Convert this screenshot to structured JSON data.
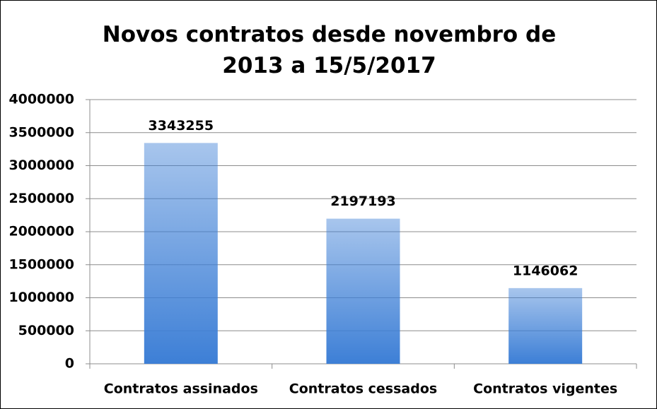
{
  "chart_data": {
    "type": "bar",
    "title": "Novos contratos desde novembro de 2013 a 15/5/2017",
    "categories": [
      "Contratos assinados",
      "Contratos cessados",
      "Contratos vigentes"
    ],
    "values": [
      3343255,
      2197193,
      1146062
    ],
    "color": "#3d7fd6",
    "ylim": [
      0,
      4000000
    ],
    "yticks": [
      0,
      500000,
      1000000,
      1500000,
      2000000,
      2500000,
      3000000,
      3500000,
      4000000
    ],
    "grid": true
  }
}
